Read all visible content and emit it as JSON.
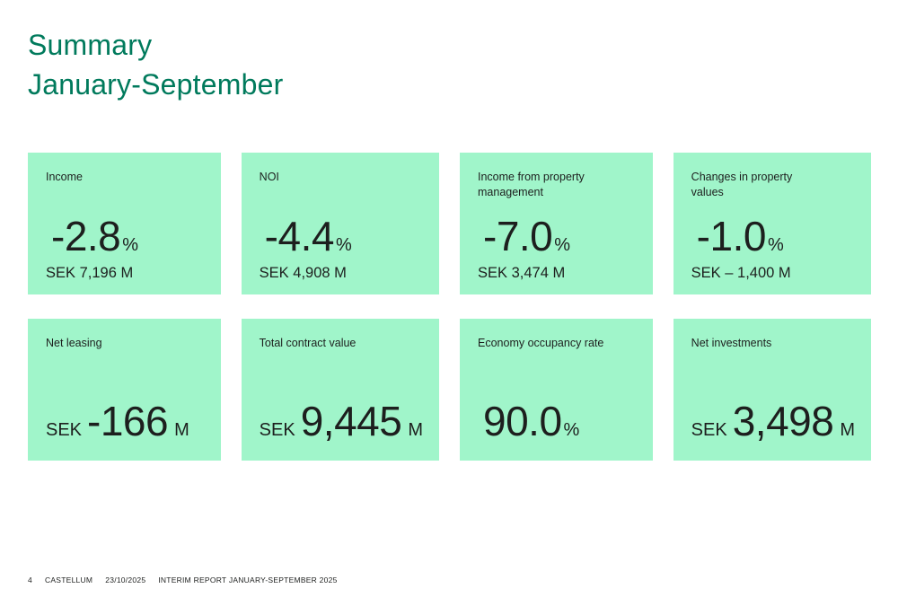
{
  "title": {
    "line1": "Summary",
    "line2": "January-September"
  },
  "cards": [
    {
      "label": "Income",
      "pre": "",
      "value": "-2.8",
      "post": "%",
      "sub": "SEK 7,196 M"
    },
    {
      "label": "NOI",
      "pre": "",
      "value": "-4.4",
      "post": "%",
      "sub": "SEK 4,908 M"
    },
    {
      "label": "Income from property management",
      "pre": "",
      "value": "-7.0",
      "post": "%",
      "sub": "SEK 3,474 M"
    },
    {
      "label": "Changes in property values",
      "pre": "",
      "value": "-1.0",
      "post": "%",
      "sub": "SEK – 1,400 M"
    },
    {
      "label": "Net leasing",
      "pre": "SEK",
      "value": "-166",
      "post": "M",
      "sub": ""
    },
    {
      "label": "Total contract value",
      "pre": "SEK",
      "value": "9,445",
      "post": "M",
      "sub": ""
    },
    {
      "label": "Economy occupancy rate",
      "pre": "",
      "value": "90.0",
      "post": "%",
      "sub": ""
    },
    {
      "label": "Net investments",
      "pre": "SEK",
      "value": "3,498",
      "post": "M",
      "sub": ""
    }
  ],
  "footer": {
    "page": "4",
    "brand": "CASTELLUM",
    "date": "23/10/2025",
    "report": "INTERIM REPORT JANUARY-SEPTEMBER 2025"
  },
  "colors": {
    "accent_green": "#007A5C",
    "card_mint": "#A0F5CA",
    "text_dark": "#1D1F1E"
  }
}
